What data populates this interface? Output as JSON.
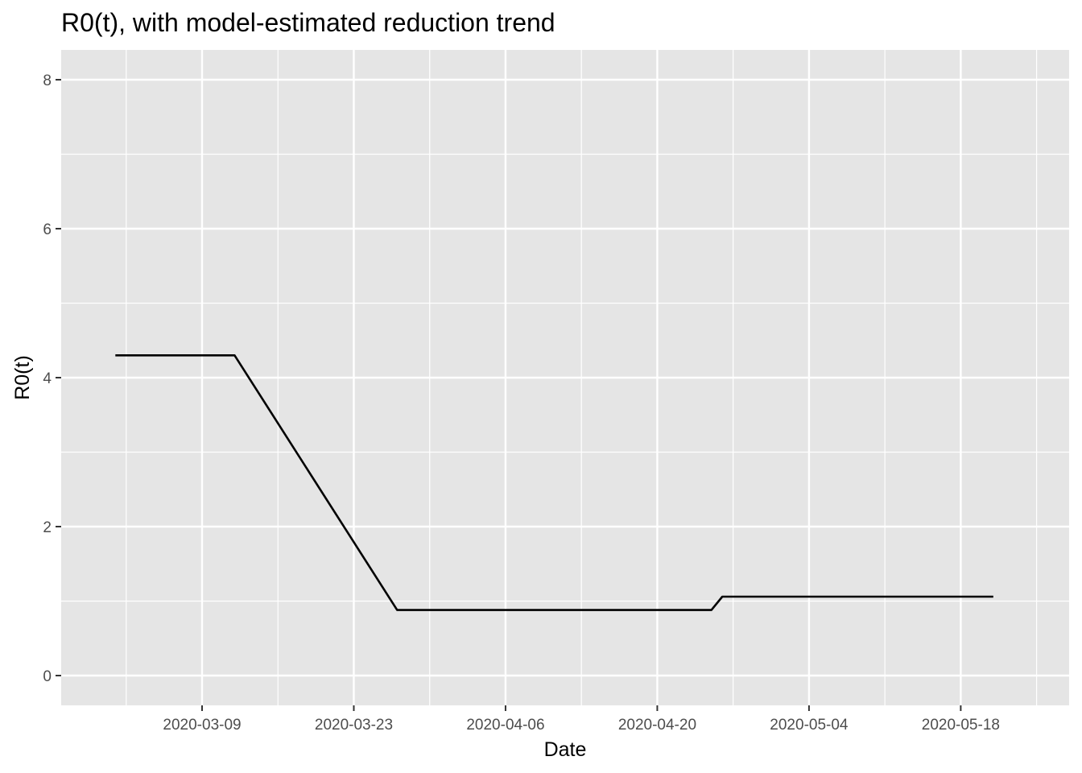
{
  "chart_data": {
    "type": "line",
    "title": "R0(t), with model-estimated reduction trend",
    "xlabel": "Date",
    "ylabel": "R0(t)",
    "x_ticks": [
      "2020-03-09",
      "2020-03-23",
      "2020-04-06",
      "2020-04-20",
      "2020-05-04",
      "2020-05-18"
    ],
    "y_ticks": [
      "0",
      "2",
      "4",
      "6",
      "8"
    ],
    "xlim": [
      "2020-02-25",
      "2020-05-28"
    ],
    "ylim": [
      -0.4,
      8.4
    ],
    "grid": true,
    "background_color": "#e5e5e5",
    "grid_color": "#ffffff",
    "line_color": "#000000",
    "series": [
      {
        "x": [
          "2020-03-01",
          "2020-03-12",
          "2020-03-27",
          "2020-04-25",
          "2020-04-26",
          "2020-05-21"
        ],
        "y": [
          4.3,
          4.3,
          0.88,
          0.88,
          1.06,
          1.06
        ]
      }
    ]
  }
}
